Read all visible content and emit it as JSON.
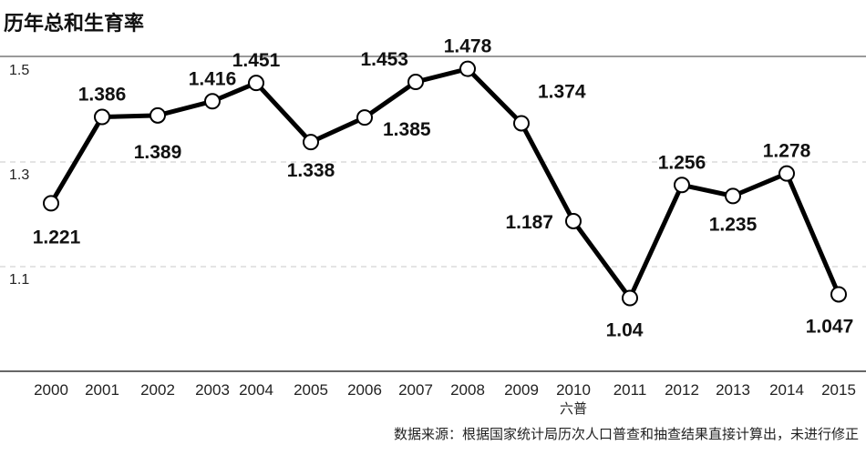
{
  "title": "历年总和生育率",
  "source_note": "数据来源：根据国家统计局历次人口普查和抽查结果直接计算出，未进行修正",
  "census_note": {
    "year": "2010",
    "label": "六普"
  },
  "colors": {
    "line": "#000000",
    "marker_fill": "#ffffff",
    "grid": "#c8c8c8",
    "top_rule": "#9a9a9a",
    "axis": "#333333"
  },
  "chart_data": {
    "type": "line",
    "title": "历年总和生育率",
    "xlabel": "",
    "ylabel": "",
    "categories": [
      "2000",
      "2001",
      "2002",
      "2003",
      "2004",
      "2005",
      "2006",
      "2007",
      "2008",
      "2009",
      "2010",
      "2011",
      "2012",
      "2013",
      "2014",
      "2015"
    ],
    "series": [
      {
        "name": "总和生育率",
        "values": [
          1.221,
          1.386,
          1.389,
          1.416,
          1.451,
          1.338,
          1.385,
          1.453,
          1.478,
          1.374,
          1.187,
          1.04,
          1.256,
          1.235,
          1.278,
          1.047
        ]
      }
    ],
    "yticks": [
      "1.5",
      "1.3",
      "1.1"
    ],
    "ylim": [
      0.96,
      1.5
    ],
    "grid": true,
    "label_positions": [
      "below",
      "above",
      "below",
      "above",
      "above",
      "below",
      "below-right",
      "above-left",
      "above",
      "above-right",
      "left",
      "below",
      "above",
      "below",
      "above",
      "below"
    ],
    "annotations": [
      {
        "x": "2010",
        "text": "六普"
      }
    ]
  }
}
